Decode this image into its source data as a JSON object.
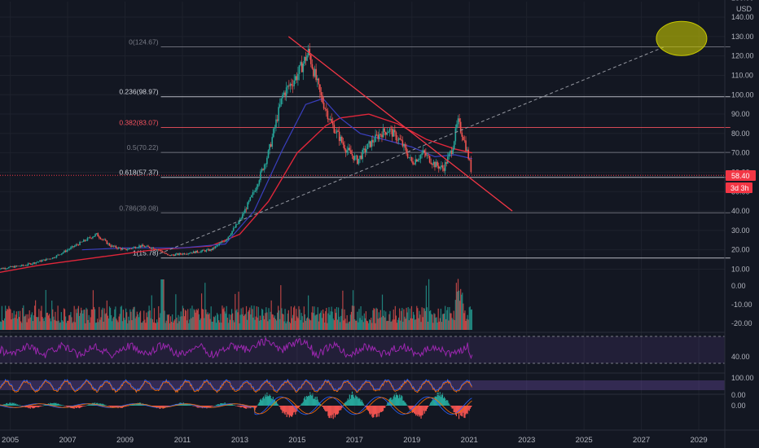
{
  "currency": "USD",
  "chart_data": {
    "type": "line",
    "x_ticks": [
      "2005",
      "2007",
      "2009",
      "2011",
      "2013",
      "2015",
      "2017",
      "2019",
      "2021",
      "2023",
      "2025",
      "2027",
      "2029"
    ],
    "price_axis": {
      "top_tick_partial": "150.00",
      "ticks": [
        "140.00",
        "130.00",
        "120.00",
        "110.00",
        "100.00",
        "90.00",
        "80.00",
        "70.00",
        "60.00",
        "50.00",
        "40.00",
        "30.00",
        "20.00",
        "10.00"
      ],
      "ylim": [
        6,
        148
      ]
    },
    "last_price": {
      "label": "58.40",
      "color": "#f23645"
    },
    "countdown": "3d 3h",
    "fib_levels": [
      {
        "label": "0(124.67)",
        "value": 124.67,
        "color": "#787b86"
      },
      {
        "label": "0.236(98.97)",
        "value": 98.97,
        "color": "#d1d4dc"
      },
      {
        "label": "0.382(83.07)",
        "value": 83.07,
        "color": "#f7525f"
      },
      {
        "label": "0.5(70.22)",
        "value": 70.22,
        "color": "#787b86"
      },
      {
        "label": "0.618(57.37)",
        "value": 57.37,
        "color": "#d1d4dc"
      },
      {
        "label": "0.786(39.08)",
        "value": 39.08,
        "color": "#787b86"
      },
      {
        "label": "1(15.78)",
        "value": 15.78,
        "color": "#d1d4dc"
      }
    ],
    "price_series": [
      [
        2004.5,
        10
      ],
      [
        2005.5,
        12
      ],
      [
        2006.5,
        16
      ],
      [
        2007.5,
        24
      ],
      [
        2008.0,
        28
      ],
      [
        2008.5,
        22
      ],
      [
        2009.0,
        20
      ],
      [
        2009.5,
        22
      ],
      [
        2010.0,
        21
      ],
      [
        2010.3,
        19
      ],
      [
        2010.5,
        17
      ],
      [
        2011.0,
        18
      ],
      [
        2011.5,
        19
      ],
      [
        2012.0,
        20
      ],
      [
        2012.5,
        25
      ],
      [
        2013.0,
        35
      ],
      [
        2013.5,
        50
      ],
      [
        2014.0,
        70
      ],
      [
        2014.5,
        100
      ],
      [
        2015.0,
        110
      ],
      [
        2015.4,
        122
      ],
      [
        2015.8,
        100
      ],
      [
        2016.2,
        85
      ],
      [
        2016.7,
        72
      ],
      [
        2017.1,
        66
      ],
      [
        2017.5,
        74
      ],
      [
        2017.9,
        80
      ],
      [
        2018.2,
        82
      ],
      [
        2018.6,
        76
      ],
      [
        2019.0,
        65
      ],
      [
        2019.4,
        70
      ],
      [
        2019.8,
        64
      ],
      [
        2020.1,
        62
      ],
      [
        2020.4,
        72
      ],
      [
        2020.6,
        86
      ],
      [
        2020.8,
        78
      ],
      [
        2021.0,
        66
      ],
      [
        2021.1,
        58.4
      ]
    ],
    "sma_slow": [
      [
        2004.5,
        8
      ],
      [
        2006,
        12
      ],
      [
        2008,
        16
      ],
      [
        2010,
        20
      ],
      [
        2011,
        21
      ],
      [
        2012,
        22
      ],
      [
        2013,
        28
      ],
      [
        2014,
        45
      ],
      [
        2015,
        70
      ],
      [
        2016,
        84
      ],
      [
        2016.5,
        88
      ],
      [
        2017.5,
        90
      ],
      [
        2018.5,
        85
      ],
      [
        2019.5,
        77
      ],
      [
        2020.5,
        72
      ],
      [
        2021.1,
        70
      ]
    ],
    "sma_mid": [
      [
        2007.5,
        20
      ],
      [
        2009,
        21
      ],
      [
        2011,
        21
      ],
      [
        2012.5,
        23
      ],
      [
        2013.5,
        40
      ],
      [
        2014.5,
        72
      ],
      [
        2015.3,
        95
      ],
      [
        2015.9,
        98
      ],
      [
        2016.5,
        88
      ],
      [
        2017.2,
        80
      ],
      [
        2018,
        77
      ],
      [
        2019,
        73
      ],
      [
        2019.8,
        68
      ],
      [
        2020.5,
        69
      ],
      [
        2021.1,
        67
      ]
    ],
    "trendlines": {
      "down_trend": {
        "from": [
          2014.7,
          130
        ],
        "to": [
          2022.5,
          40
        ],
        "color": "#f23645"
      },
      "dashed_up": {
        "from": [
          2010.2,
          18
        ],
        "to": [
          2027.8,
          124.67
        ],
        "color": "#9598a1"
      }
    },
    "target_ellipse": {
      "center": [
        2028.4,
        129
      ],
      "color": "#c8c800"
    },
    "volume_axis": [
      "0.00",
      "-10.00",
      "-20.00"
    ],
    "rsi_axis": [
      "40.00"
    ],
    "stoch_axis": [
      "100.00",
      "0.00"
    ],
    "macd_axis": [
      "0.00"
    ]
  }
}
